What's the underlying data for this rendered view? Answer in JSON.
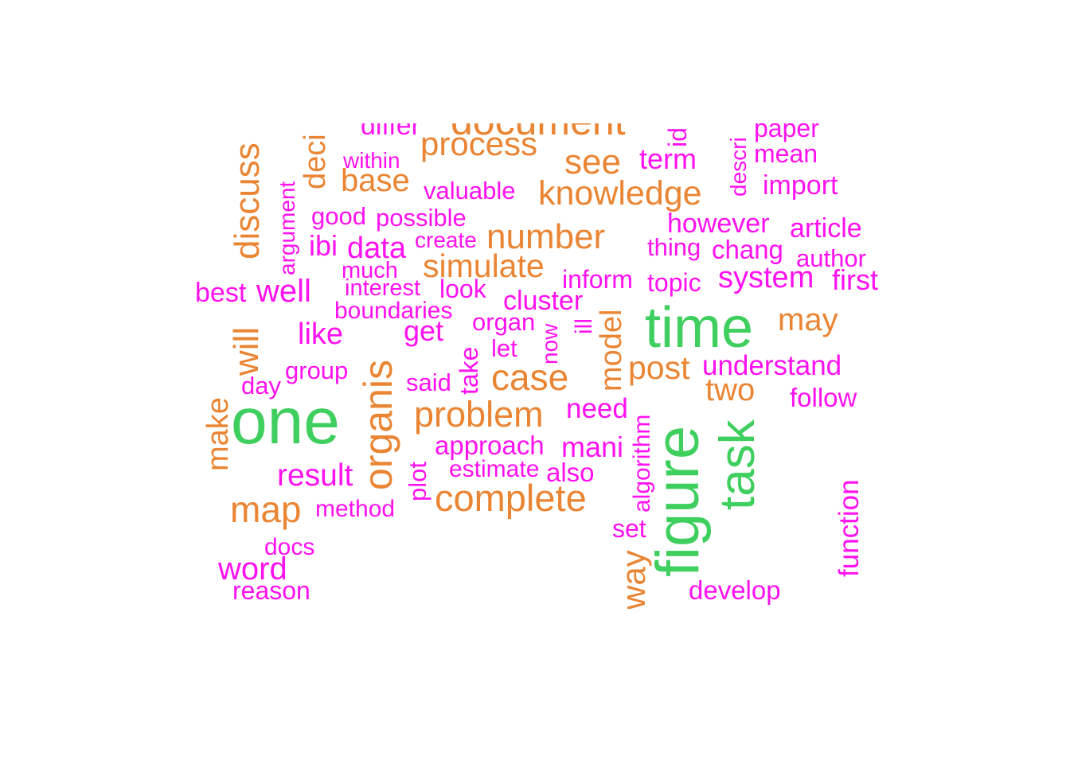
{
  "colors": {
    "green": "#3ecf5e",
    "orange": "#ea8533",
    "magenta": "#ff11f0"
  },
  "words": [
    {
      "text": "one",
      "color": "green",
      "rot": 0
    },
    {
      "text": "time",
      "color": "green",
      "rot": 0
    },
    {
      "text": "figure",
      "color": "green",
      "rot": -90
    },
    {
      "text": "task",
      "color": "green",
      "rot": -90
    },
    {
      "text": "organis",
      "color": "orange",
      "rot": -90
    },
    {
      "text": "document",
      "color": "orange",
      "rot": 0
    },
    {
      "text": "process",
      "color": "orange",
      "rot": 0
    },
    {
      "text": "see",
      "color": "orange",
      "rot": 0
    },
    {
      "text": "knowledge",
      "color": "orange",
      "rot": 0
    },
    {
      "text": "number",
      "color": "orange",
      "rot": 0
    },
    {
      "text": "simulate",
      "color": "orange",
      "rot": 0
    },
    {
      "text": "base",
      "color": "orange",
      "rot": 0
    },
    {
      "text": "discuss",
      "color": "orange",
      "rot": -90
    },
    {
      "text": "deci",
      "color": "orange",
      "rot": -90
    },
    {
      "text": "will",
      "color": "orange",
      "rot": -90
    },
    {
      "text": "make",
      "color": "orange",
      "rot": -90
    },
    {
      "text": "map",
      "color": "orange",
      "rot": 0
    },
    {
      "text": "case",
      "color": "orange",
      "rot": 0
    },
    {
      "text": "problem",
      "color": "orange",
      "rot": 0
    },
    {
      "text": "complete",
      "color": "orange",
      "rot": 0
    },
    {
      "text": "may",
      "color": "orange",
      "rot": 0
    },
    {
      "text": "post",
      "color": "orange",
      "rot": 0
    },
    {
      "text": "two",
      "color": "orange",
      "rot": 0
    },
    {
      "text": "model",
      "color": "orange",
      "rot": -90
    },
    {
      "text": "way",
      "color": "orange",
      "rot": -90
    },
    {
      "text": "differ",
      "color": "magenta",
      "rot": 0
    },
    {
      "text": "id",
      "color": "magenta",
      "rot": -90
    },
    {
      "text": "paper",
      "color": "magenta",
      "rot": 0
    },
    {
      "text": "term",
      "color": "magenta",
      "rot": 0
    },
    {
      "text": "mean",
      "color": "magenta",
      "rot": 0
    },
    {
      "text": "descri",
      "color": "magenta",
      "rot": -90
    },
    {
      "text": "import",
      "color": "magenta",
      "rot": 0
    },
    {
      "text": "within",
      "color": "magenta",
      "rot": 0
    },
    {
      "text": "valuable",
      "color": "magenta",
      "rot": 0
    },
    {
      "text": "argument",
      "color": "magenta",
      "rot": -90
    },
    {
      "text": "good",
      "color": "magenta",
      "rot": 0
    },
    {
      "text": "possible",
      "color": "magenta",
      "rot": 0
    },
    {
      "text": "however",
      "color": "magenta",
      "rot": 0
    },
    {
      "text": "article",
      "color": "magenta",
      "rot": 0
    },
    {
      "text": "ibi",
      "color": "magenta",
      "rot": 0
    },
    {
      "text": "data",
      "color": "magenta",
      "rot": 0
    },
    {
      "text": "create",
      "color": "magenta",
      "rot": 0
    },
    {
      "text": "thing",
      "color": "magenta",
      "rot": 0
    },
    {
      "text": "chang",
      "color": "magenta",
      "rot": 0
    },
    {
      "text": "author",
      "color": "magenta",
      "rot": 0
    },
    {
      "text": "much",
      "color": "magenta",
      "rot": 0
    },
    {
      "text": "inform",
      "color": "magenta",
      "rot": 0
    },
    {
      "text": "topic",
      "color": "magenta",
      "rot": 0
    },
    {
      "text": "system",
      "color": "magenta",
      "rot": 0
    },
    {
      "text": "first",
      "color": "magenta",
      "rot": 0
    },
    {
      "text": "best",
      "color": "magenta",
      "rot": 0
    },
    {
      "text": "well",
      "color": "magenta",
      "rot": 0
    },
    {
      "text": "interest",
      "color": "magenta",
      "rot": 0
    },
    {
      "text": "look",
      "color": "magenta",
      "rot": 0
    },
    {
      "text": "cluster",
      "color": "magenta",
      "rot": 0
    },
    {
      "text": "boundaries",
      "color": "magenta",
      "rot": 0
    },
    {
      "text": "organ",
      "color": "magenta",
      "rot": 0
    },
    {
      "text": "now",
      "color": "magenta",
      "rot": -90
    },
    {
      "text": "ill",
      "color": "magenta",
      "rot": -90
    },
    {
      "text": "like",
      "color": "magenta",
      "rot": 0
    },
    {
      "text": "get",
      "color": "magenta",
      "rot": 0
    },
    {
      "text": "let",
      "color": "magenta",
      "rot": 0
    },
    {
      "text": "take",
      "color": "magenta",
      "rot": -90
    },
    {
      "text": "understand",
      "color": "magenta",
      "rot": 0
    },
    {
      "text": "group",
      "color": "magenta",
      "rot": 0
    },
    {
      "text": "day",
      "color": "magenta",
      "rot": 0
    },
    {
      "text": "said",
      "color": "magenta",
      "rot": 0
    },
    {
      "text": "follow",
      "color": "magenta",
      "rot": 0
    },
    {
      "text": "need",
      "color": "magenta",
      "rot": 0
    },
    {
      "text": "approach",
      "color": "magenta",
      "rot": 0
    },
    {
      "text": "mani",
      "color": "magenta",
      "rot": 0
    },
    {
      "text": "algorithm",
      "color": "magenta",
      "rot": -90
    },
    {
      "text": "estimate",
      "color": "magenta",
      "rot": 0
    },
    {
      "text": "also",
      "color": "magenta",
      "rot": 0
    },
    {
      "text": "result",
      "color": "magenta",
      "rot": 0
    },
    {
      "text": "plot",
      "color": "magenta",
      "rot": -90
    },
    {
      "text": "method",
      "color": "magenta",
      "rot": 0
    },
    {
      "text": "set",
      "color": "magenta",
      "rot": 0
    },
    {
      "text": "function",
      "color": "magenta",
      "rot": -90
    },
    {
      "text": "docs",
      "color": "magenta",
      "rot": 0
    },
    {
      "text": "word",
      "color": "magenta",
      "rot": 0
    },
    {
      "text": "reason",
      "color": "magenta",
      "rot": 0
    },
    {
      "text": "develop",
      "color": "magenta",
      "rot": 0
    }
  ]
}
